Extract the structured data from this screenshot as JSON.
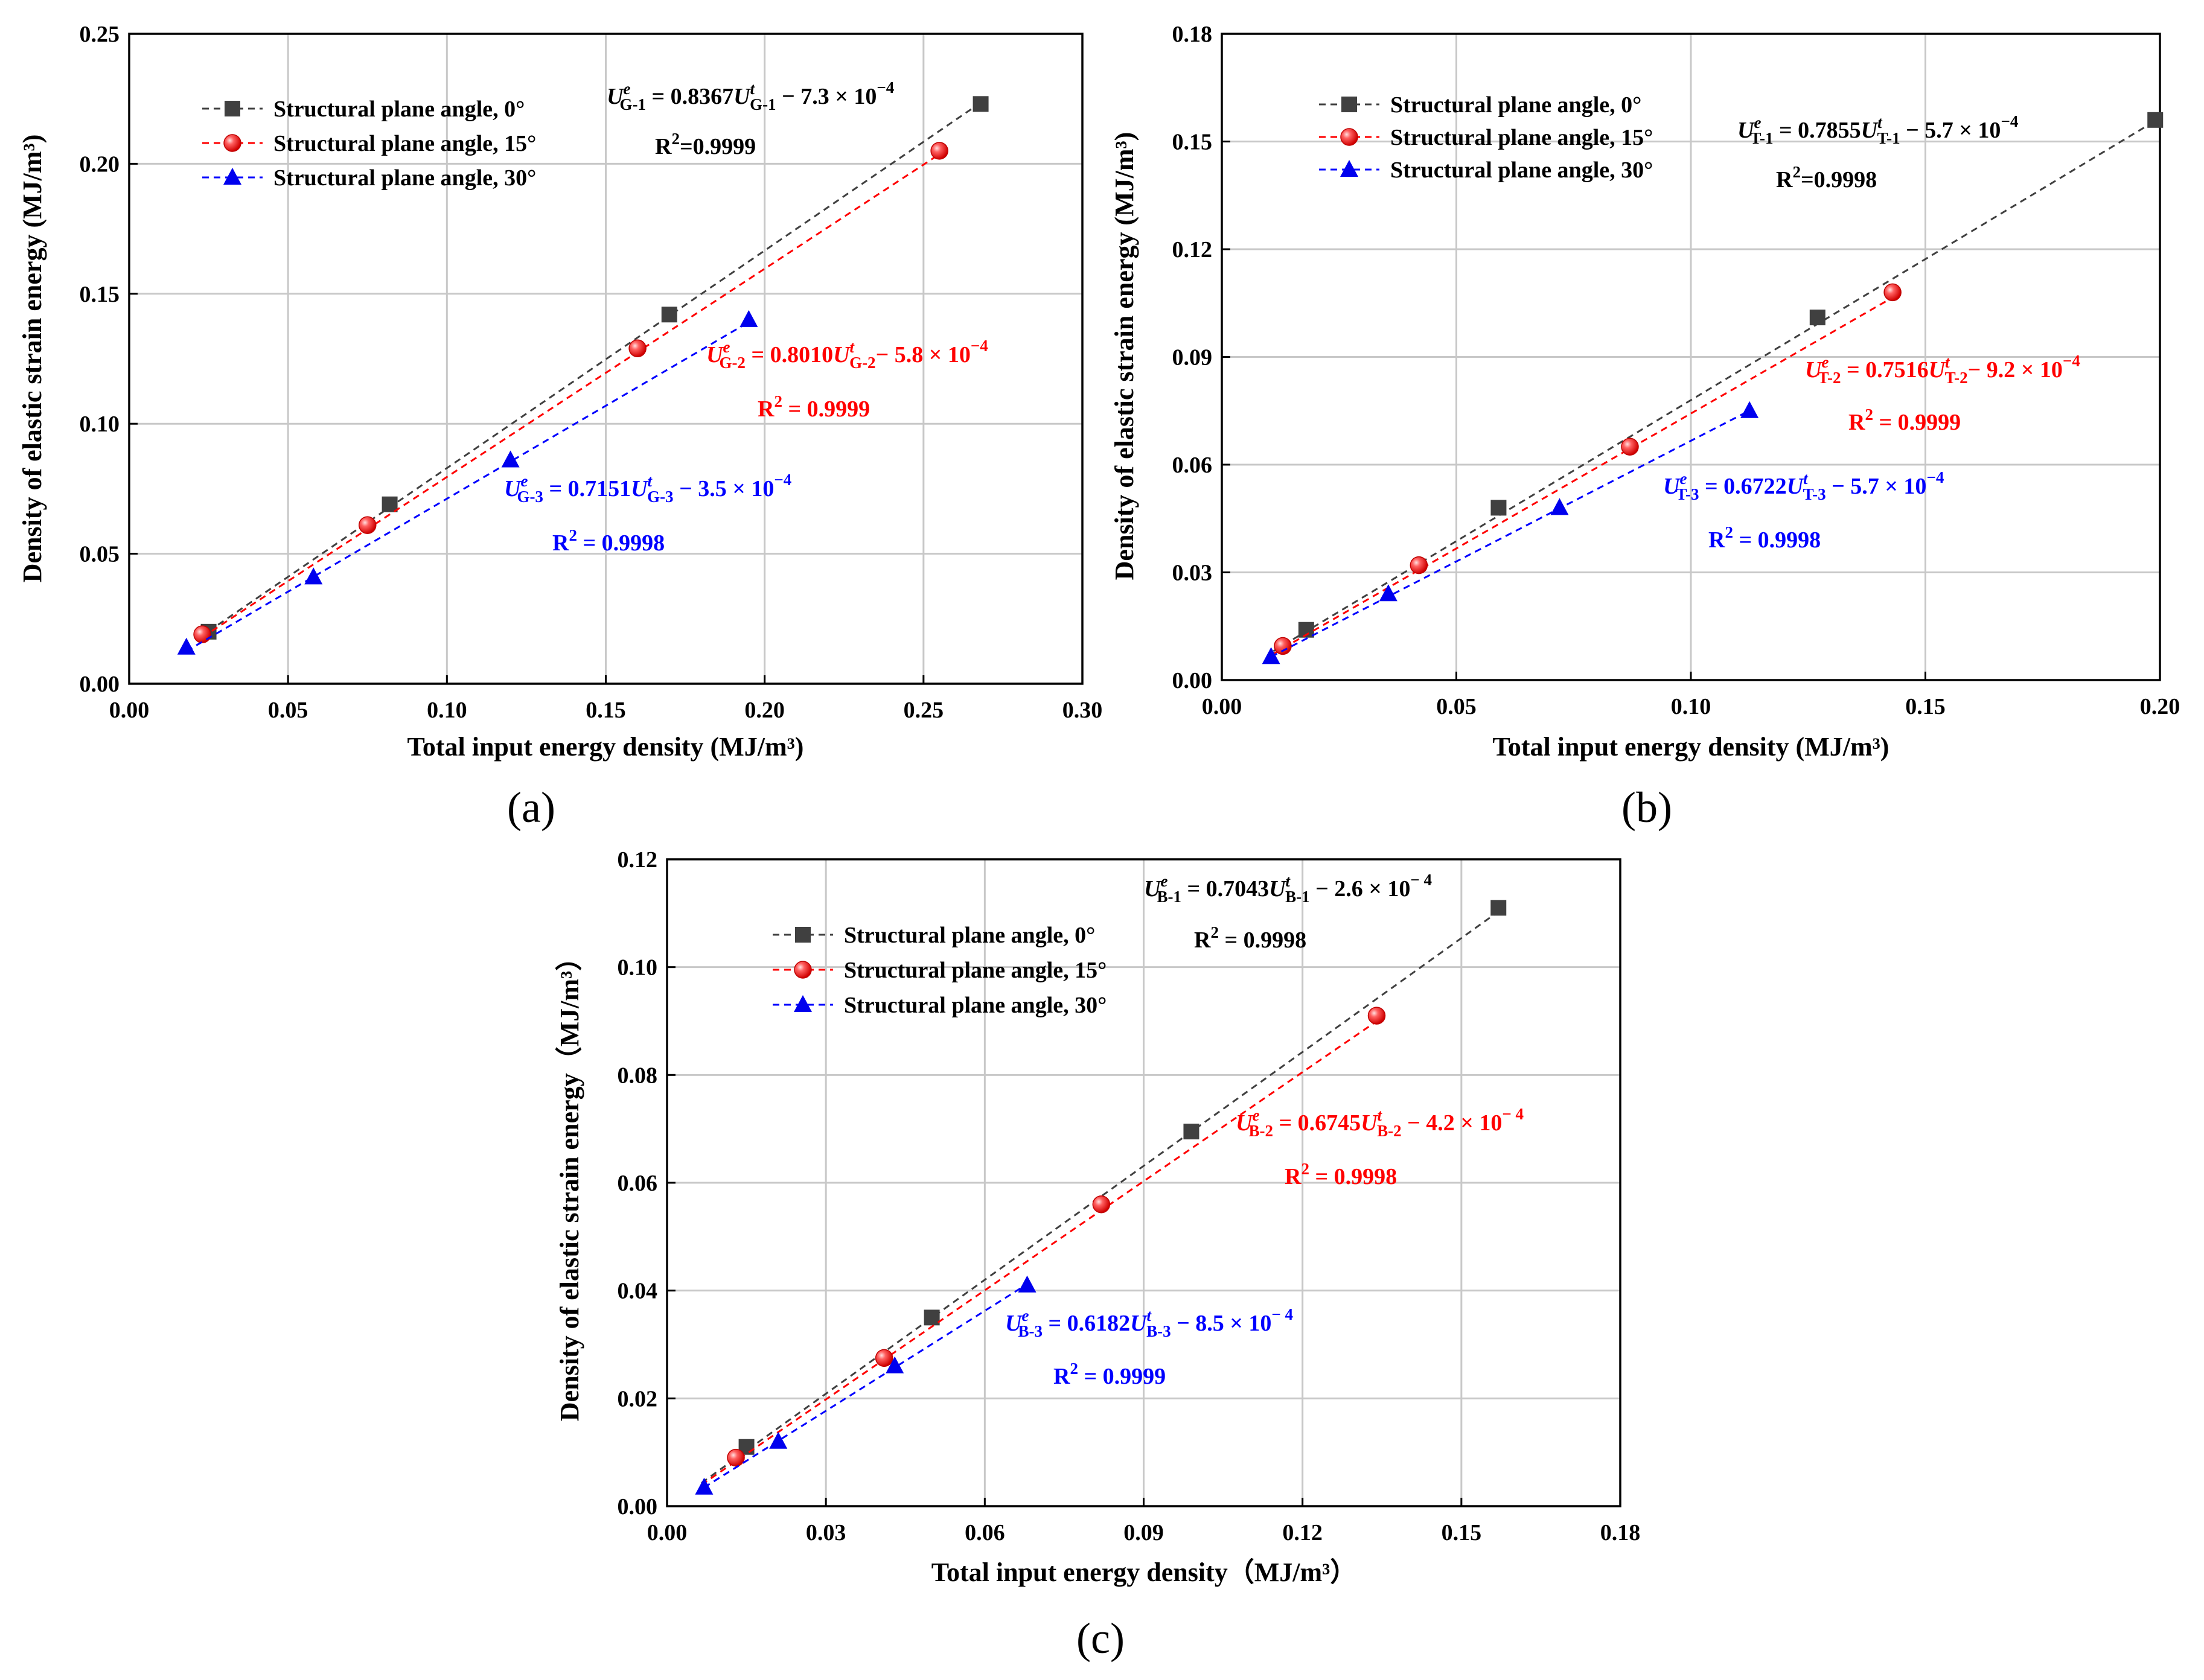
{
  "colors": {
    "series_0": "#404040",
    "series_15": "#ff2020",
    "series_30": "#0000ee",
    "fit_0": "#404040",
    "fit_15": "#ff0000",
    "fit_30": "#0000ff",
    "grid": "#c8c8c8"
  },
  "chart_data": [
    {
      "id": "a",
      "type": "scatter",
      "panel_label": "(a)",
      "xlabel": "Total input energy density (MJ/m³)",
      "ylabel": "Density of elastic strain energy (MJ/m³)",
      "xlim": [
        0,
        0.3
      ],
      "ylim": [
        0,
        0.25
      ],
      "xticks": [
        "0.00",
        "0.05",
        "0.10",
        "0.15",
        "0.20",
        "0.25",
        "0.30"
      ],
      "yticks": [
        "0.00",
        "0.05",
        "0.10",
        "0.15",
        "0.20",
        "0.25"
      ],
      "grid": true,
      "legend_position": "top-left",
      "series": [
        {
          "name": "Structural plane angle, 0°",
          "marker": "square",
          "color_key": "series_0",
          "x": [
            0.025,
            0.082,
            0.17,
            0.268
          ],
          "y": [
            0.02,
            0.069,
            0.142,
            0.223
          ],
          "fit": {
            "slope": 0.8367,
            "intercept": -0.00073,
            "x_range": [
              0.025,
              0.268
            ]
          },
          "equation": {
            "lead": "U",
            "sup1": "e",
            "sub1": "G-1",
            "mid": " = 0.8367U",
            "sup2": "t",
            "sub2": "G-1",
            "tail": " −  7.3 × 10",
            "exp": "−4"
          },
          "r2": {
            "base": "R",
            "sup": "2",
            "rest": "=0.9999"
          }
        },
        {
          "name": "Structural plane angle, 15°",
          "marker": "sphere",
          "color_key": "series_15",
          "x": [
            0.023,
            0.075,
            0.16,
            0.255
          ],
          "y": [
            0.019,
            0.061,
            0.129,
            0.205
          ],
          "fit": {
            "slope": 0.801,
            "intercept": -0.00058,
            "x_range": [
              0.023,
              0.255
            ]
          },
          "equation": {
            "lead": "U",
            "sup1": "e",
            "sub1": "G-2",
            "mid": " = 0.8010U",
            "sup2": "t",
            "sub2": "G-2",
            "tail": "− 5.8 × 10",
            "exp": "−4"
          },
          "r2": {
            "base": "R",
            "sup": "2",
            "rest": " = 0.9999"
          }
        },
        {
          "name": "Structural plane angle, 30°",
          "marker": "triangle",
          "color_key": "series_30",
          "x": [
            0.018,
            0.058,
            0.12,
            0.195
          ],
          "y": [
            0.014,
            0.041,
            0.086,
            0.14
          ],
          "fit": {
            "slope": 0.7151,
            "intercept": -0.00035,
            "x_range": [
              0.018,
              0.195
            ]
          },
          "equation": {
            "lead": "U",
            "sup1": "e",
            "sub1": "G-3",
            "mid": " = 0.7151U",
            "sup2": "t",
            "sub2": "G-3",
            "tail": " − 3.5 × 10",
            "exp": "−4"
          },
          "r2": {
            "base": "R",
            "sup": "2",
            "rest": " = 0.9998"
          }
        }
      ]
    },
    {
      "id": "b",
      "type": "scatter",
      "panel_label": "(b)",
      "xlabel": "Total input energy density (MJ/m³)",
      "ylabel": "Density of elastic strain energy (MJ/m³)",
      "xlim": [
        0,
        0.2
      ],
      "ylim": [
        0,
        0.18
      ],
      "xticks": [
        "0.00",
        "0.05",
        "0.10",
        "0.15",
        "0.20"
      ],
      "yticks": [
        "0.00",
        "0.03",
        "0.06",
        "0.09",
        "0.12",
        "0.15",
        "0.18"
      ],
      "grid": true,
      "legend_position": "top-left",
      "series": [
        {
          "name": "Structural plane angle, 0°",
          "marker": "square",
          "color_key": "series_0",
          "x": [
            0.018,
            0.059,
            0.127,
            0.199
          ],
          "y": [
            0.014,
            0.048,
            0.101,
            0.156
          ],
          "fit": {
            "slope": 0.7855,
            "intercept": -0.00057,
            "x_range": [
              0.011,
              0.199
            ]
          },
          "equation": {
            "lead": "U",
            "sup1": "e",
            "sub1": "T-1",
            "mid": " = 0.7855U",
            "sup2": "t",
            "sub2": "T-1",
            "tail": " −  5.7 × 10",
            "exp": "−4"
          },
          "r2": {
            "base": "R",
            "sup": "2",
            "rest": "=0.9998"
          }
        },
        {
          "name": "Structural plane angle, 15°",
          "marker": "sphere",
          "color_key": "series_15",
          "x": [
            0.013,
            0.042,
            0.087,
            0.143
          ],
          "y": [
            0.0095,
            0.032,
            0.065,
            0.108
          ],
          "fit": {
            "slope": 0.7516,
            "intercept": -0.00092,
            "x_range": [
              0.011,
              0.143
            ]
          },
          "equation": {
            "lead": "U",
            "sup1": "e",
            "sub1": "T-2",
            "mid": " = 0.7516U",
            "sup2": "t",
            "sub2": "T-2",
            "tail": "− 9.2 × 10",
            "exp": "−4"
          },
          "r2": {
            "base": "R",
            "sup": "2",
            "rest": " = 0.9999"
          }
        },
        {
          "name": "Structural plane angle, 30°",
          "marker": "triangle",
          "color_key": "series_30",
          "x": [
            0.0105,
            0.0355,
            0.072,
            0.1125
          ],
          "y": [
            0.0065,
            0.024,
            0.048,
            0.075
          ],
          "fit": {
            "slope": 0.6722,
            "intercept": -0.00057,
            "x_range": [
              0.0105,
              0.1125
            ]
          },
          "equation": {
            "lead": "U",
            "sup1": "e",
            "sub1": "T-3",
            "mid": " = 0.6722U",
            "sup2": "t",
            "sub2": "T-3",
            "tail": " −  5.7 × 10",
            "exp": "−4"
          },
          "r2": {
            "base": "R",
            "sup": "2",
            "rest": " = 0.9998"
          }
        }
      ]
    },
    {
      "id": "c",
      "type": "scatter",
      "panel_label": "(c)",
      "xlabel": "Total input energy density（MJ/m³）",
      "ylabel": "Density of elastic strain energy（MJ/m³）",
      "xlim": [
        0,
        0.18
      ],
      "ylim": [
        0,
        0.12
      ],
      "xticks": [
        "0.00",
        "0.03",
        "0.06",
        "0.09",
        "0.12",
        "0.15",
        "0.18"
      ],
      "yticks": [
        "0.00",
        "0.02",
        "0.04",
        "0.06",
        "0.08",
        "0.10",
        "0.12"
      ],
      "grid": true,
      "legend_position": "top-left",
      "series": [
        {
          "name": "Structural plane angle, 0°",
          "marker": "square",
          "color_key": "series_0",
          "x": [
            0.015,
            0.05,
            0.099,
            0.157
          ],
          "y": [
            0.011,
            0.035,
            0.0695,
            0.111
          ],
          "fit": {
            "slope": 0.7043,
            "intercept": -0.00026,
            "x_range": [
              0.0065,
              0.157
            ]
          },
          "equation": {
            "lead": "U",
            "sup1": "e",
            "sub1": "B-1",
            "mid": " = 0.7043U",
            "sup2": "t",
            "sub2": "B-1",
            "tail": " − 2.6 × 10",
            "exp": "− 4"
          },
          "r2": {
            "base": "R",
            "sup": "2",
            "rest": " = 0.9998"
          }
        },
        {
          "name": "Structural plane angle, 15°",
          "marker": "sphere",
          "color_key": "series_15",
          "x": [
            0.013,
            0.041,
            0.082,
            0.134
          ],
          "y": [
            0.009,
            0.0275,
            0.056,
            0.091
          ],
          "fit": {
            "slope": 0.6745,
            "intercept": -0.00042,
            "x_range": [
              0.0065,
              0.134
            ]
          },
          "equation": {
            "lead": "U",
            "sup1": "e",
            "sub1": "B-2",
            "mid": " = 0.6745U",
            "sup2": "t",
            "sub2": "B-2",
            "tail": " − 4.2 × 10",
            "exp": "− 4"
          },
          "r2": {
            "base": "R",
            "sup": "2",
            "rest": " = 0.9998"
          }
        },
        {
          "name": "Structural plane angle, 30°",
          "marker": "triangle",
          "color_key": "series_30",
          "x": [
            0.007,
            0.021,
            0.043,
            0.068
          ],
          "y": [
            0.0035,
            0.012,
            0.026,
            0.041
          ],
          "fit": {
            "slope": 0.6182,
            "intercept": -0.00085,
            "x_range": [
              0.007,
              0.068
            ]
          },
          "equation": {
            "lead": "U",
            "sup1": "e",
            "sub1": "B-3",
            "mid": " = 0.6182U",
            "sup2": "t",
            "sub2": "B-3",
            "tail": " − 8.5 × 10",
            "exp": "− 4"
          },
          "r2": {
            "base": "R",
            "sup": "2",
            "rest": " = 0.9999"
          }
        }
      ]
    }
  ]
}
